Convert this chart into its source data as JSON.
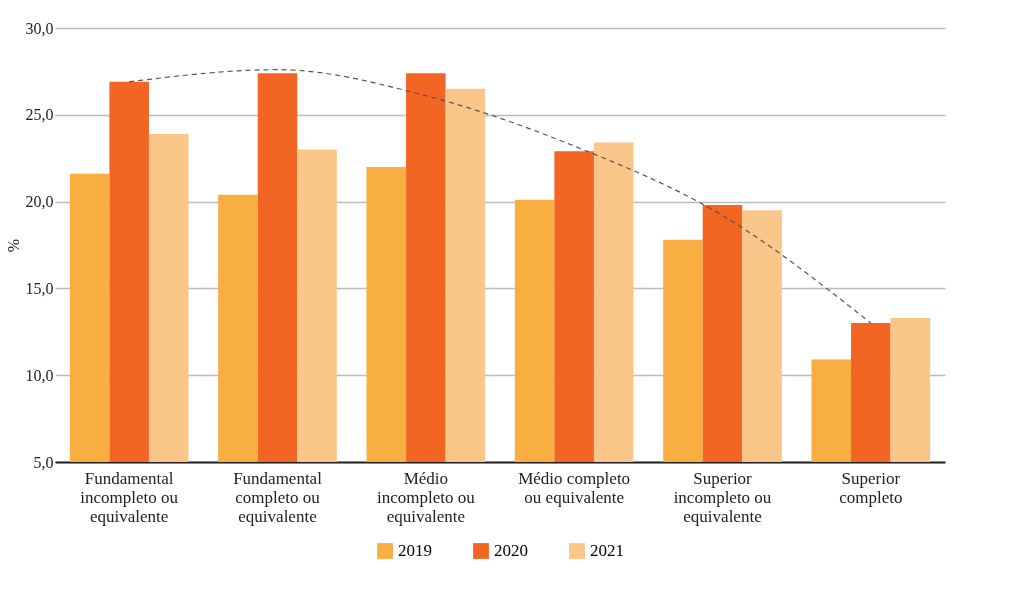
{
  "chart_data": {
    "type": "bar",
    "ylabel": "%",
    "categories": [
      "Fundamental incompleto ou equivalente",
      "Fundamental completo ou equivalente",
      "Médio incompleto ou equivalente",
      "Médio completo ou equivalente",
      "Superior incompleto ou equivalente",
      "Superior completo"
    ],
    "series": [
      {
        "name": "2019",
        "color": "#f9ae42",
        "values": [
          21.6,
          20.4,
          22.0,
          20.1,
          17.8,
          10.9
        ]
      },
      {
        "name": "2020",
        "color": "#f26522",
        "values": [
          26.9,
          27.4,
          27.4,
          22.9,
          19.8,
          13.0
        ]
      },
      {
        "name": "2021",
        "color": "#fbc68a",
        "values": [
          23.9,
          23.0,
          26.5,
          23.4,
          19.5,
          13.3
        ]
      },
      {
        "type": "line",
        "color": "#555555",
        "line_style": "dashed",
        "x": [
          "Fundamental incompleto ou equivalente",
          "Fundamental completo ou equivalente",
          "Médio incompleto ou equivalente",
          "Médio completo ou equivalente",
          "Superior incompleto ou equivalente",
          "Superior completo"
        ],
        "values": [
          26.9,
          27.6,
          26.1,
          23.2,
          19.2,
          13.0
        ]
      }
    ],
    "ylim": [
      5,
      30
    ],
    "yticks": [
      {
        "value": 5,
        "label": "5,0"
      },
      {
        "value": 10,
        "label": "10,0"
      },
      {
        "value": 15,
        "label": "15,0"
      },
      {
        "value": 20,
        "label": "20,0"
      },
      {
        "value": 25,
        "label": "25,0"
      },
      {
        "value": 30,
        "label": "30,0"
      }
    ],
    "grid": "y",
    "legend": "bottom"
  }
}
